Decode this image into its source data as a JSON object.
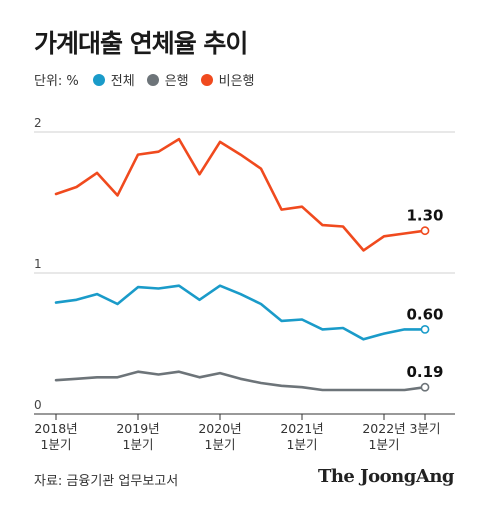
{
  "title": "가계대출 연체율 추이",
  "legend": {
    "unit": "단위: %",
    "items": [
      {
        "label": "전체",
        "color": "#1a9bc9"
      },
      {
        "label": "은행",
        "color": "#6d7479"
      },
      {
        "label": "비은행",
        "color": "#f04a1e"
      }
    ]
  },
  "source": "자료: 금융기관 업무보고서",
  "brand": "The JoongAng",
  "chart_data": {
    "type": "line",
    "ylim": [
      0,
      2
    ],
    "yticks": [
      "0",
      "1",
      "2"
    ],
    "x_tick_labels": [
      {
        "line1": "2018년",
        "line2": "1분기",
        "index": 0
      },
      {
        "line1": "2019년",
        "line2": "1분기",
        "index": 4
      },
      {
        "line1": "2020년",
        "line2": "1분기",
        "index": 8
      },
      {
        "line1": "2021년",
        "line2": "1분기",
        "index": 12
      },
      {
        "line1": "2022년",
        "line2": "1분기",
        "index": 16
      },
      {
        "line1": "3분기",
        "line2": "",
        "index": 18
      }
    ],
    "series": [
      {
        "name": "비은행",
        "color": "#f04a1e",
        "end_label": "1.30",
        "values": [
          1.56,
          1.61,
          1.71,
          1.55,
          1.84,
          1.86,
          1.95,
          1.7,
          1.93,
          1.84,
          1.74,
          1.45,
          1.47,
          1.34,
          1.33,
          1.16,
          1.26,
          1.28,
          1.3
        ]
      },
      {
        "name": "전체",
        "color": "#1a9bc9",
        "end_label": "0.60",
        "values": [
          0.79,
          0.81,
          0.85,
          0.78,
          0.9,
          0.89,
          0.91,
          0.81,
          0.91,
          0.85,
          0.78,
          0.66,
          0.67,
          0.6,
          0.61,
          0.53,
          0.57,
          0.6,
          0.6
        ]
      },
      {
        "name": "은행",
        "color": "#6d7479",
        "end_label": "0.19",
        "values": [
          0.24,
          0.25,
          0.26,
          0.26,
          0.3,
          0.28,
          0.3,
          0.26,
          0.29,
          0.25,
          0.22,
          0.2,
          0.19,
          0.17,
          0.17,
          0.17,
          0.17,
          0.17,
          0.19
        ]
      }
    ]
  }
}
